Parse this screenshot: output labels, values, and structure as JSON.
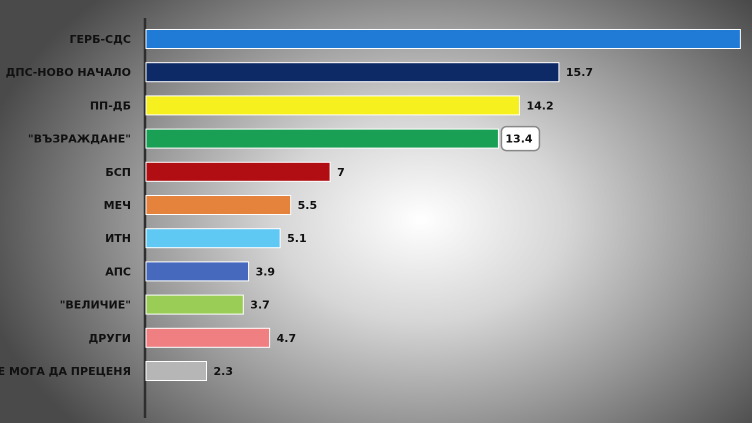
{
  "chart_data": {
    "type": "bar",
    "orientation": "horizontal",
    "categories": [
      "ГЕРБ-СДС",
      "ДПС-НОВО НАЧАЛО",
      "ПП-ДБ",
      "\"ВЪЗРАЖДАНЕ\"",
      "БСП",
      "МЕЧ",
      "ИТН",
      "АПС",
      "\"ВЕЛИЧИЕ\"",
      "ДРУГИ",
      "НЕ МОГА ДА ПРЕЦЕНЯ"
    ],
    "values": [
      22.6,
      15.7,
      14.2,
      13.4,
      7,
      5.5,
      5.1,
      3.9,
      3.7,
      4.7,
      2.3
    ],
    "value_labels": [
      "",
      "15.7",
      "14.2",
      "13.4",
      "7",
      "5.5",
      "5.1",
      "3.9",
      "3.7",
      "4.7",
      "2.3"
    ],
    "colors": [
      "#1f7bd6",
      "#0e2a66",
      "#f5f01e",
      "#1aa055",
      "#b00e12",
      "#e5823c",
      "#5fc8f3",
      "#4669bd",
      "#9acd55",
      "#ef7f80",
      "#b6b6b6"
    ],
    "highlighted_label_index": 3,
    "title": "",
    "xlabel": "",
    "ylabel": "",
    "grid": false,
    "legend": "none"
  }
}
